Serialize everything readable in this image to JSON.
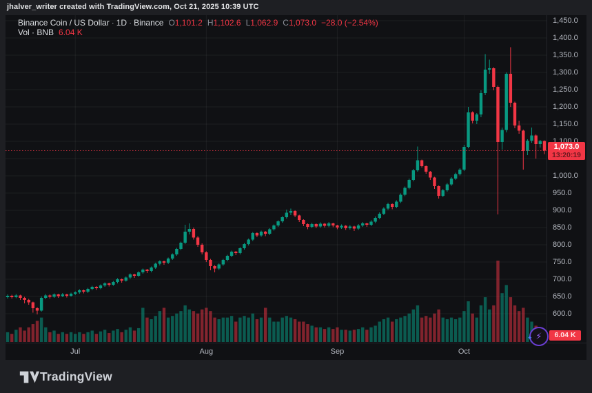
{
  "attribution": "jhalver_writer created with TradingView.com, Oct 21, 2025 10:39 UTC",
  "legend": {
    "title": "Binance Coin / US Dollar",
    "sep": "·",
    "interval": "1D",
    "exchange": "Binance",
    "o_key": "O",
    "o_val": "1,101.2",
    "h_key": "H",
    "h_val": "1,102.6",
    "l_key": "L",
    "l_val": "1,062.9",
    "c_key": "C",
    "c_val": "1,073.0",
    "change": "−28.0 (−2.54%)",
    "vol_label": "Vol · BNB",
    "vol_value": "6.04 K"
  },
  "footer": {
    "brand": "TradingView"
  },
  "badges": {
    "bolt": "⚡",
    "spark": "✦"
  },
  "colors": {
    "up": "#089981",
    "down": "#f23645",
    "up_vol": "rgba(8,153,129,0.55)",
    "down_vol": "rgba(242,54,69,0.50)",
    "grid": "rgba(250,250,250,0.055)",
    "label_bg": "#f23645",
    "price_line": "rgba(242,54,69,0.8)"
  },
  "chart_data": {
    "type": "candlestick_with_volume",
    "symbol": "BNBUSD",
    "interval": "1D",
    "x_range": "mid-June to Oct 21, 2025",
    "ylim": [
      516,
      1466
    ],
    "grid": {
      "price_min": 600,
      "price_max": 1450,
      "price_step": 50
    },
    "price_ticks": [
      {
        "value": 1450,
        "label": "1,450.0"
      },
      {
        "value": 1400,
        "label": "1,400.0"
      },
      {
        "value": 1350,
        "label": "1,350.0"
      },
      {
        "value": 1300,
        "label": "1,300.0"
      },
      {
        "value": 1250,
        "label": "1,250.0"
      },
      {
        "value": 1200,
        "label": "1,200.0"
      },
      {
        "value": 1150,
        "label": "1,150.0"
      },
      {
        "value": 1100,
        "label": "1,100.0"
      },
      {
        "value": 1000,
        "label": "1,000.0"
      },
      {
        "value": 950,
        "label": "950.0"
      },
      {
        "value": 900,
        "label": "900.0"
      },
      {
        "value": 850,
        "label": "850.0"
      },
      {
        "value": 800,
        "label": "800.0"
      },
      {
        "value": 750,
        "label": "750.0"
      },
      {
        "value": 700,
        "label": "700.0"
      },
      {
        "value": 650,
        "label": "650.0"
      },
      {
        "value": 600,
        "label": "600.0"
      }
    ],
    "time_ticks": [
      {
        "label": "Jul",
        "index": 16
      },
      {
        "label": "Aug",
        "index": 47
      },
      {
        "label": "Sep",
        "index": 78
      },
      {
        "label": "Oct",
        "index": 108
      }
    ],
    "price_line": {
      "value": 1073.0,
      "label": "1,073.0",
      "countdown": "13:20:19"
    },
    "volume_marker": {
      "label": "6.04 K",
      "value_k": 6.04
    },
    "last_bar": {
      "open": 1101.2,
      "high": 1102.6,
      "low": 1062.9,
      "close": 1073.0,
      "change": -28.0,
      "change_pct": -2.54
    },
    "candles_format": [
      "open",
      "high",
      "low",
      "close",
      "volume_rel"
    ],
    "candles": [
      [
        648,
        656,
        644,
        652,
        0.12
      ],
      [
        652,
        655,
        644,
        648,
        0.1
      ],
      [
        648,
        657,
        645,
        653,
        0.15
      ],
      [
        653,
        655,
        640,
        646,
        0.18
      ],
      [
        646,
        649,
        630,
        640,
        0.14
      ],
      [
        640,
        643,
        626,
        633,
        0.18
      ],
      [
        633,
        635,
        603,
        616,
        0.22
      ],
      [
        616,
        619,
        598,
        609,
        0.26
      ],
      [
        609,
        650,
        606,
        646,
        0.3
      ],
      [
        646,
        657,
        642,
        653,
        0.18
      ],
      [
        653,
        656,
        644,
        649,
        0.12
      ],
      [
        649,
        659,
        646,
        656,
        0.14
      ],
      [
        656,
        658,
        646,
        651,
        0.1
      ],
      [
        651,
        660,
        648,
        656,
        0.12
      ],
      [
        656,
        658,
        647,
        652,
        0.1
      ],
      [
        652,
        661,
        649,
        658,
        0.12
      ],
      [
        658,
        665,
        654,
        662,
        0.1
      ],
      [
        662,
        671,
        658,
        668,
        0.12
      ],
      [
        668,
        670,
        659,
        664,
        0.1
      ],
      [
        664,
        675,
        660,
        672,
        0.12
      ],
      [
        672,
        681,
        668,
        678,
        0.14
      ],
      [
        678,
        680,
        669,
        674,
        0.1
      ],
      [
        674,
        685,
        671,
        682,
        0.13
      ],
      [
        682,
        691,
        678,
        688,
        0.15
      ],
      [
        688,
        690,
        679,
        684,
        0.11
      ],
      [
        684,
        695,
        681,
        692,
        0.14
      ],
      [
        692,
        703,
        688,
        700,
        0.16
      ],
      [
        700,
        702,
        690,
        696,
        0.12
      ],
      [
        696,
        708,
        693,
        705,
        0.15
      ],
      [
        705,
        717,
        701,
        714,
        0.18
      ],
      [
        714,
        716,
        704,
        710,
        0.14
      ],
      [
        710,
        723,
        707,
        720,
        0.17
      ],
      [
        720,
        731,
        716,
        728,
        0.42
      ],
      [
        728,
        730,
        718,
        724,
        0.3
      ],
      [
        724,
        737,
        720,
        734,
        0.28
      ],
      [
        734,
        748,
        730,
        745,
        0.32
      ],
      [
        745,
        755,
        740,
        752,
        0.38
      ],
      [
        752,
        754,
        742,
        748,
        0.42
      ],
      [
        748,
        763,
        744,
        760,
        0.3
      ],
      [
        760,
        775,
        756,
        772,
        0.32
      ],
      [
        772,
        791,
        768,
        788,
        0.35
      ],
      [
        788,
        809,
        784,
        806,
        0.38
      ],
      [
        806,
        858,
        802,
        838,
        0.45
      ],
      [
        838,
        862,
        830,
        846,
        0.4
      ],
      [
        846,
        850,
        815,
        821,
        0.38
      ],
      [
        821,
        825,
        794,
        800,
        0.35
      ],
      [
        800,
        804,
        772,
        778,
        0.4
      ],
      [
        778,
        781,
        750,
        756,
        0.42
      ],
      [
        756,
        759,
        726,
        738,
        0.38
      ],
      [
        738,
        741,
        720,
        731,
        0.3
      ],
      [
        731,
        746,
        727,
        743,
        0.28
      ],
      [
        743,
        759,
        739,
        756,
        0.3
      ],
      [
        756,
        771,
        752,
        768,
        0.3
      ],
      [
        768,
        783,
        764,
        780,
        0.32
      ],
      [
        780,
        782,
        770,
        776,
        0.25
      ],
      [
        776,
        793,
        772,
        790,
        0.3
      ],
      [
        790,
        805,
        786,
        802,
        0.32
      ],
      [
        802,
        818,
        798,
        815,
        0.3
      ],
      [
        815,
        837,
        811,
        834,
        0.35
      ],
      [
        834,
        836,
        822,
        827,
        0.28
      ],
      [
        827,
        841,
        823,
        838,
        0.3
      ],
      [
        838,
        840,
        825,
        832,
        0.42
      ],
      [
        832,
        848,
        828,
        845,
        0.3
      ],
      [
        845,
        859,
        841,
        856,
        0.25
      ],
      [
        856,
        871,
        852,
        868,
        0.25
      ],
      [
        868,
        883,
        864,
        880,
        0.3
      ],
      [
        880,
        902,
        876,
        893,
        0.32
      ],
      [
        893,
        905,
        886,
        898,
        0.3
      ],
      [
        898,
        900,
        880,
        885,
        0.28
      ],
      [
        885,
        887,
        866,
        872,
        0.25
      ],
      [
        872,
        874,
        854,
        860,
        0.25
      ],
      [
        860,
        862,
        845,
        852,
        0.22
      ],
      [
        852,
        864,
        848,
        860,
        0.2
      ],
      [
        860,
        862,
        848,
        853,
        0.18
      ],
      [
        853,
        865,
        849,
        861,
        0.18
      ],
      [
        861,
        863,
        850,
        855,
        0.16
      ],
      [
        855,
        866,
        851,
        862,
        0.18
      ],
      [
        862,
        864,
        851,
        856,
        0.16
      ],
      [
        856,
        858,
        845,
        850,
        0.18
      ],
      [
        850,
        859,
        846,
        855,
        0.15
      ],
      [
        855,
        857,
        843,
        848,
        0.15
      ],
      [
        848,
        857,
        844,
        853,
        0.14
      ],
      [
        853,
        855,
        840,
        847,
        0.15
      ],
      [
        847,
        860,
        843,
        856,
        0.16
      ],
      [
        856,
        866,
        852,
        862,
        0.18
      ],
      [
        862,
        864,
        852,
        858,
        0.15
      ],
      [
        858,
        871,
        854,
        867,
        0.18
      ],
      [
        867,
        882,
        863,
        878,
        0.2
      ],
      [
        878,
        894,
        874,
        890,
        0.25
      ],
      [
        890,
        909,
        886,
        905,
        0.28
      ],
      [
        905,
        922,
        901,
        918,
        0.3
      ],
      [
        918,
        920,
        903,
        910,
        0.25
      ],
      [
        910,
        929,
        906,
        925,
        0.28
      ],
      [
        925,
        949,
        921,
        945,
        0.3
      ],
      [
        945,
        969,
        941,
        965,
        0.32
      ],
      [
        965,
        992,
        961,
        988,
        0.35
      ],
      [
        988,
        1020,
        984,
        1016,
        0.4
      ],
      [
        1016,
        1085,
        1012,
        1045,
        0.45
      ],
      [
        1045,
        1047,
        1024,
        1028,
        0.3
      ],
      [
        1028,
        1030,
        1006,
        1012,
        0.32
      ],
      [
        1012,
        1014,
        988,
        995,
        0.3
      ],
      [
        995,
        997,
        962,
        970,
        0.35
      ],
      [
        970,
        972,
        934,
        942,
        0.4
      ],
      [
        942,
        962,
        938,
        958,
        0.3
      ],
      [
        958,
        979,
        954,
        975,
        0.28
      ],
      [
        975,
        996,
        971,
        992,
        0.3
      ],
      [
        992,
        1009,
        988,
        1005,
        0.28
      ],
      [
        1005,
        1022,
        1001,
        1018,
        0.3
      ],
      [
        1018,
        1090,
        1014,
        1084,
        0.38
      ],
      [
        1084,
        1200,
        1080,
        1184,
        0.5
      ],
      [
        1184,
        1187,
        1152,
        1160,
        0.35
      ],
      [
        1160,
        1182,
        1150,
        1178,
        0.3
      ],
      [
        1178,
        1248,
        1170,
        1240,
        0.45
      ],
      [
        1240,
        1353,
        1234,
        1308,
        0.55
      ],
      [
        1308,
        1337,
        1296,
        1312,
        0.4
      ],
      [
        1312,
        1315,
        1248,
        1258,
        0.45
      ],
      [
        1258,
        1262,
        888,
        1098,
        1.0
      ],
      [
        1098,
        1140,
        1076,
        1133,
        0.6
      ],
      [
        1133,
        1300,
        1126,
        1296,
        0.7
      ],
      [
        1296,
        1373,
        1200,
        1212,
        0.55
      ],
      [
        1212,
        1215,
        1138,
        1146,
        0.45
      ],
      [
        1146,
        1160,
        1122,
        1131,
        0.38
      ],
      [
        1131,
        1134,
        1018,
        1072,
        0.42
      ],
      [
        1072,
        1106,
        1060,
        1102,
        0.3
      ],
      [
        1102,
        1140,
        1096,
        1117,
        0.25
      ],
      [
        1117,
        1120,
        1050,
        1092,
        0.2
      ],
      [
        1092,
        1104,
        1082,
        1101,
        0.15
      ],
      [
        1101.2,
        1102.6,
        1062.9,
        1073,
        0.08
      ]
    ]
  }
}
